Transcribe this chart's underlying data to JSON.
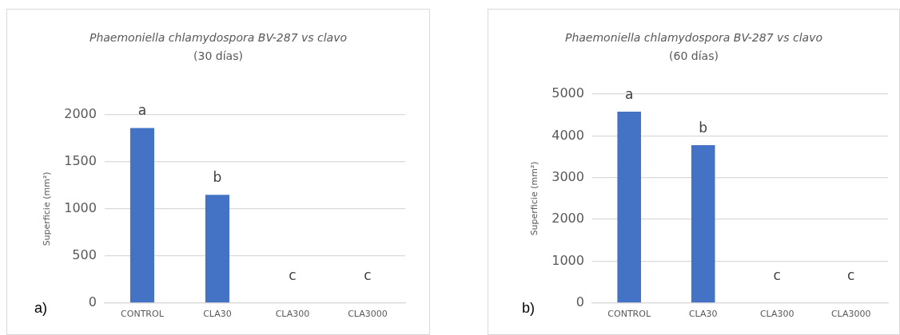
{
  "chart_data": [
    {
      "type": "bar",
      "title": "Phaemoniella chlamydospora BV-287 vs clavo",
      "subtitle": "(30 días)",
      "ylabel": "Superficie (mm²)",
      "categories": [
        "CONTROL",
        "CLA30",
        "CLA300",
        "CLA3000"
      ],
      "values": [
        1860,
        1150,
        0,
        0
      ],
      "color": "#4472c4",
      "ylim": [
        0,
        2000
      ],
      "yticks": [
        0,
        500,
        1000,
        1500,
        2000
      ],
      "grid": "y",
      "legend": false,
      "annotations": [
        "a",
        "b",
        "c",
        "c",
        "a)"
      ]
    },
    {
      "type": "bar",
      "title": "Phaemoniella chlamydospora BV-287 vs clavo",
      "subtitle": "(60 días)",
      "ylabel": "Superficie (mm²)",
      "categories": [
        "CONTROL",
        "CLA30",
        "CLA300",
        "CLA3000"
      ],
      "values": [
        4580,
        3780,
        0,
        0
      ],
      "color": "#4472c4",
      "ylim": [
        0,
        5000
      ],
      "yticks": [
        0,
        1000,
        2000,
        3000,
        4000,
        5000
      ],
      "grid": "y",
      "legend": false,
      "annotations": [
        "a",
        "b",
        "c",
        "c",
        "b)"
      ]
    }
  ]
}
